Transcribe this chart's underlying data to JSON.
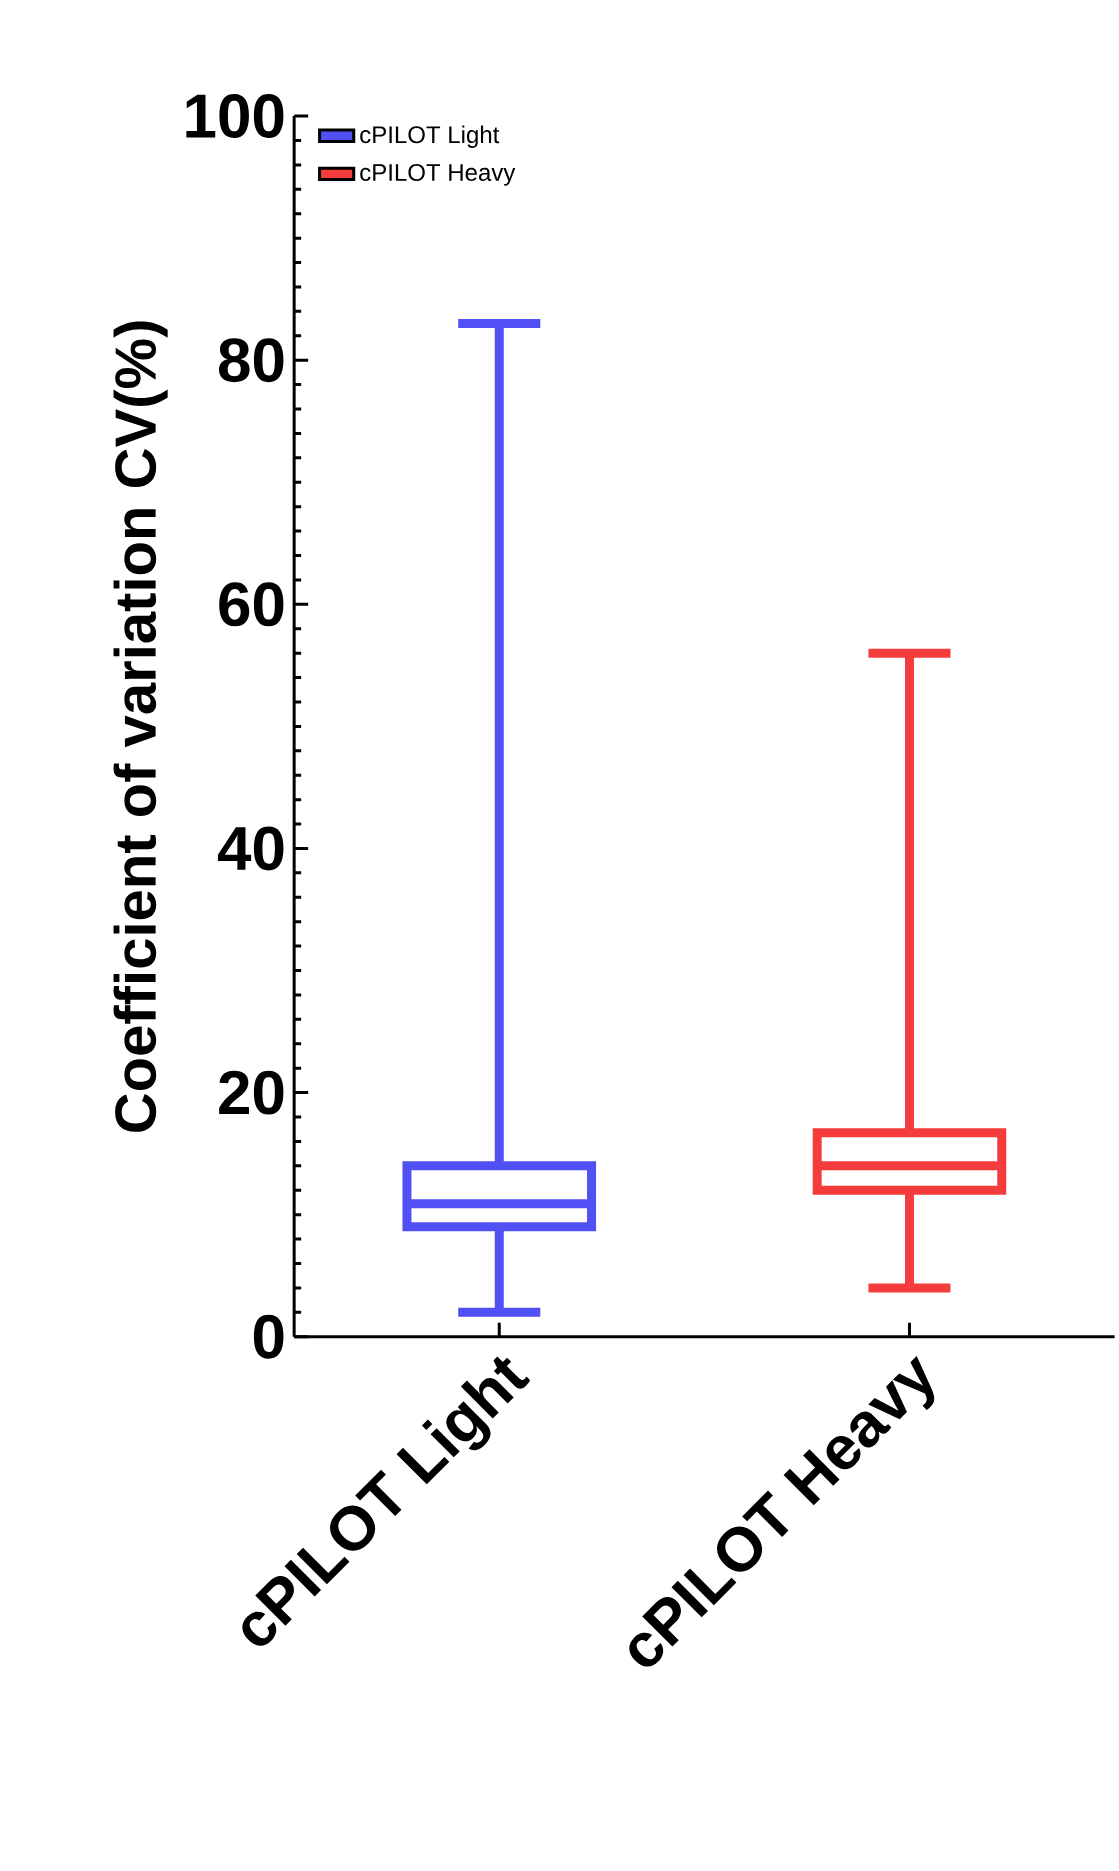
{
  "chart_data": {
    "type": "box",
    "ylabel": "Coefficient of variation CV(%)",
    "categories": [
      "cPILOT Light",
      "cPILOT Heavy"
    ],
    "series": [
      {
        "name": "cPILOT Light",
        "color": "#5050f5",
        "boxes": [
          {
            "low": 2,
            "q1": 9,
            "median": 10.9,
            "q3": 14,
            "high": 83
          },
          null
        ]
      },
      {
        "name": "cPILOT Heavy",
        "color": "#f53c3c",
        "boxes": [
          null,
          {
            "low": 4,
            "q1": 12,
            "median": 14,
            "q3": 16.7,
            "high": 56
          }
        ]
      }
    ],
    "ylim": [
      0,
      100
    ],
    "yticks": [
      0,
      20,
      40,
      60,
      80,
      100
    ],
    "legend": "top left",
    "grid": false
  }
}
